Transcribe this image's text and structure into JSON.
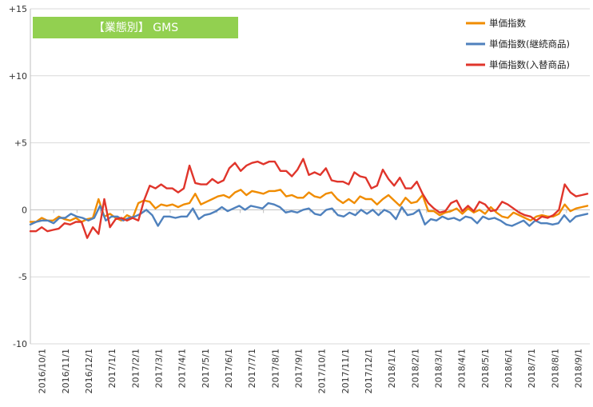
{
  "chart_data": {
    "type": "line",
    "title": "【業態別】 GMS",
    "title_box_color": "#92d050",
    "ylim": [
      -10,
      15
    ],
    "y_ticks": [
      {
        "value": 15,
        "label": "+15"
      },
      {
        "value": 10,
        "label": "+10"
      },
      {
        "value": 5,
        "label": "+5"
      },
      {
        "value": 0,
        "label": "0"
      },
      {
        "value": -5,
        "label": "-5"
      },
      {
        "value": -10,
        "label": "-10"
      }
    ],
    "x_tick_labels": [
      "2016/10/1",
      "2016/11/1",
      "2016/12/1",
      "2017/1/1",
      "2017/2/1",
      "2017/3/1",
      "2017/4/1",
      "2017/5/1",
      "2017/6/1",
      "2017/7/1",
      "2017/8/1",
      "2017/9/1",
      "2017/10/1",
      "2017/11/1",
      "2017/12/1",
      "2018/1/1",
      "2018/2/1",
      "2018/3/1",
      "2018/4/1",
      "2018/5/1",
      "2018/6/1",
      "2018/7/1",
      "2018/8/1",
      "2018/9/1"
    ],
    "legend_position": "top-right",
    "series": [
      {
        "name": "単価指数",
        "color": "#f08c00",
        "values": [
          -0.9,
          -0.9,
          -0.6,
          -0.8,
          -0.8,
          -0.5,
          -0.7,
          -0.8,
          -0.6,
          -0.9,
          -0.7,
          -0.6,
          0.8,
          -0.5,
          -0.3,
          -0.6,
          -0.8,
          -0.4,
          -0.6,
          0.5,
          0.7,
          0.6,
          0.1,
          0.4,
          0.3,
          0.4,
          0.2,
          0.4,
          0.5,
          1.2,
          0.4,
          0.6,
          0.8,
          1.0,
          1.1,
          0.9,
          1.3,
          1.5,
          1.1,
          1.4,
          1.3,
          1.2,
          1.4,
          1.4,
          1.5,
          1.0,
          1.1,
          0.9,
          0.9,
          1.3,
          1.0,
          0.9,
          1.2,
          1.3,
          0.8,
          0.5,
          0.8,
          0.5,
          1.0,
          0.8,
          0.8,
          0.4,
          0.8,
          1.1,
          0.7,
          0.3,
          0.9,
          0.5,
          0.6,
          1.1,
          -0.1,
          -0.1,
          -0.4,
          -0.2,
          -0.1,
          0.1,
          -0.3,
          0.1,
          -0.2,
          0.0,
          -0.3,
          0.2,
          -0.2,
          -0.5,
          -0.6,
          -0.2,
          -0.4,
          -0.6,
          -0.8,
          -0.5,
          -0.4,
          -0.5,
          -0.5,
          -0.3,
          0.4,
          -0.1,
          0.1,
          0.2,
          0.3
        ]
      },
      {
        "name": "単価指数(継続商品)",
        "color": "#4f81bd",
        "values": [
          -1.1,
          -0.9,
          -0.8,
          -0.8,
          -1.0,
          -0.6,
          -0.6,
          -0.3,
          -0.5,
          -0.6,
          -0.8,
          -0.6,
          0.3,
          -0.8,
          -0.5,
          -0.5,
          -0.8,
          -0.6,
          -0.5,
          -0.3,
          0.0,
          -0.4,
          -1.2,
          -0.5,
          -0.5,
          -0.6,
          -0.5,
          -0.5,
          0.1,
          -0.7,
          -0.4,
          -0.3,
          -0.1,
          0.2,
          -0.1,
          0.1,
          0.3,
          0.0,
          0.3,
          0.2,
          0.1,
          0.5,
          0.4,
          0.2,
          -0.2,
          -0.1,
          -0.2,
          0.0,
          0.1,
          -0.3,
          -0.4,
          0.0,
          0.1,
          -0.4,
          -0.5,
          -0.2,
          -0.4,
          0.0,
          -0.3,
          0.0,
          -0.4,
          0.0,
          -0.2,
          -0.7,
          0.2,
          -0.4,
          -0.3,
          0.0,
          -1.1,
          -0.7,
          -0.8,
          -0.5,
          -0.7,
          -0.6,
          -0.8,
          -0.5,
          -0.6,
          -1.0,
          -0.5,
          -0.7,
          -0.6,
          -0.8,
          -1.1,
          -1.2,
          -1.0,
          -0.8,
          -1.2,
          -0.8,
          -1.0,
          -1.0,
          -1.1,
          -1.0,
          -0.4,
          -0.9,
          -0.5,
          -0.4,
          -0.3
        ]
      },
      {
        "name": "単価指数(入替商品)",
        "color": "#e0352b",
        "values": [
          -1.6,
          -1.6,
          -1.3,
          -1.6,
          -1.5,
          -1.4,
          -1.0,
          -1.1,
          -0.9,
          -0.9,
          -2.1,
          -1.3,
          -1.8,
          0.8,
          -1.3,
          -0.7,
          -0.6,
          -0.8,
          -0.6,
          -0.8,
          0.7,
          1.8,
          1.6,
          1.9,
          1.6,
          1.6,
          1.3,
          1.6,
          3.3,
          2.0,
          1.9,
          1.9,
          2.3,
          2.0,
          2.2,
          3.1,
          3.5,
          2.9,
          3.3,
          3.5,
          3.6,
          3.4,
          3.6,
          3.6,
          2.9,
          2.9,
          2.5,
          3.0,
          3.8,
          2.6,
          2.8,
          2.6,
          3.1,
          2.2,
          2.1,
          2.1,
          1.9,
          2.8,
          2.5,
          2.4,
          1.6,
          1.8,
          3.0,
          2.3,
          1.8,
          2.4,
          1.6,
          1.6,
          2.1,
          1.2,
          0.5,
          0.1,
          -0.2,
          -0.1,
          0.5,
          0.7,
          -0.1,
          0.3,
          -0.1,
          0.6,
          0.4,
          -0.1,
          0.0,
          0.6,
          0.4,
          0.1,
          -0.2,
          -0.4,
          -0.5,
          -0.8,
          -0.5,
          -0.6,
          -0.4,
          0.0,
          1.9,
          1.3,
          1.0,
          1.1,
          1.2
        ]
      }
    ]
  }
}
